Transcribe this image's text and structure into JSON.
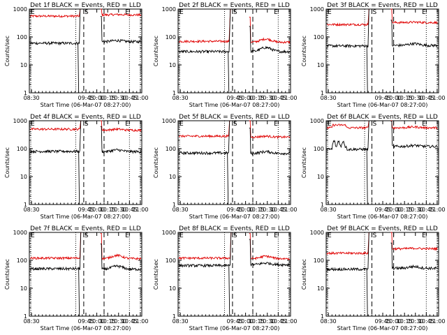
{
  "chart_data": {
    "type": "line",
    "ylabel": "Counts/sec",
    "xlabel": "Start Time (06-Mar-07 08:27:00)",
    "y_scale": "log",
    "ylim": [
      1,
      1000
    ],
    "ytick_labels": [
      "1",
      "10",
      "100",
      "1000"
    ],
    "xlim_minutes_since_0830": [
      -3,
      152
    ],
    "xtick_labels": [
      "08:30",
      "09:45",
      "10:00",
      "10:15",
      "10:30",
      "10:45",
      "11:00"
    ],
    "marker_labels": {
      "start": "S",
      "end": "E",
      "edge": "E"
    },
    "series_colors": {
      "events": "#000000",
      "lld": "#e00000"
    },
    "panels": [
      {
        "title": "Det 1f BLACK = Events, RED = LLD",
        "xticks": [
          "08:30",
          "09:45",
          "10:00",
          "10:15",
          "10:30",
          "10:45",
          "11:00"
        ],
        "gap": [
          66,
          95
        ],
        "dashed": [
          61,
          72,
          100
        ],
        "events": {
          "pre": 60,
          "post": 68,
          "bump": 75
        },
        "lld": {
          "pre": 560,
          "post": 620,
          "bump": 640
        },
        "pre_spike": false
      },
      {
        "title": "Det 2f BLACK = Events, RED = LLD",
        "xticks": [
          "08:30",
          "09:45",
          "10:00",
          "10:15",
          "10:30",
          "10:45",
          "11:00"
        ],
        "gap": [
          68,
          95
        ],
        "dashed": [
          61,
          72,
          100
        ],
        "events": {
          "pre": 30,
          "post": 30,
          "bump": 42
        },
        "lld": {
          "pre": 70,
          "post": 65,
          "bump": 85
        },
        "pre_spike": false
      },
      {
        "title": "Det 3f BLACK = Events, RED = LLD",
        "xticks": [
          "08:30",
          "09:45",
          "10:00",
          "10:15",
          "10:30",
          "10:45",
          "11:00"
        ],
        "gap": [
          55,
          86
        ],
        "dashed": [
          50,
          60,
          90
        ],
        "events": {
          "pre": 48,
          "post": 50,
          "bump": 58
        },
        "lld": {
          "pre": 280,
          "post": 330,
          "bump": 340
        },
        "pre_spike": false
      },
      {
        "title": "Det 4f BLACK = Events, RED = LLD",
        "xticks": [
          "08:30",
          "09:45",
          "10:00",
          "10:15",
          "10:30",
          "10:45",
          "11:00"
        ],
        "gap": [
          67,
          95
        ],
        "dashed": [
          61,
          72,
          100
        ],
        "events": {
          "pre": 80,
          "post": 78,
          "bump": 90
        },
        "lld": {
          "pre": 500,
          "post": 460,
          "bump": 500
        },
        "pre_spike": false
      },
      {
        "title": "Det 5f BLACK = Events, RED = LLD",
        "xticks": [
          "08:30",
          "09:45",
          "10:00",
          "10:15",
          "10:30",
          "10:45",
          "11:00"
        ],
        "gap": [
          67,
          95
        ],
        "dashed": [
          61,
          72,
          100
        ],
        "events": {
          "pre": 70,
          "post": 68,
          "bump": 78
        },
        "lld": {
          "pre": 280,
          "post": 260,
          "bump": 280
        },
        "pre_spike": false
      },
      {
        "title": "Det 6f BLACK = Events, RED = LLD",
        "xticks": [
          "08:30",
          "09:45",
          "10:00",
          "10:15",
          "10:30",
          "10:45",
          "11:00"
        ],
        "gap": [
          55,
          86
        ],
        "dashed": [
          50,
          60,
          90
        ],
        "events": {
          "pre": 95,
          "post": 120,
          "bump": 130
        },
        "lld": {
          "pre": 560,
          "post": 560,
          "bump": 600
        },
        "pre_spike": true
      },
      {
        "title": "Det 7f BLACK = Events, RED = LLD",
        "xticks": [
          "08:30",
          "09:45",
          "10:00",
          "10:15",
          "10:30",
          "10:45",
          "11:00"
        ],
        "gap": [
          67,
          95
        ],
        "dashed": [
          61,
          72,
          100
        ],
        "events": {
          "pre": 50,
          "post": 48,
          "bump": 62
        },
        "lld": {
          "pre": 120,
          "post": 115,
          "bump": 150
        },
        "pre_spike": false
      },
      {
        "title": "Det 8f BLACK = Events, RED = LLD",
        "xticks": [
          "08:30",
          "09:45",
          "10:00",
          "10:15",
          "10:30",
          "10:45",
          "11:00"
        ],
        "gap": [
          69,
          95
        ],
        "dashed": [
          61,
          72,
          100
        ],
        "events": {
          "pre": 65,
          "post": 70,
          "bump": 80
        },
        "lld": {
          "pre": 120,
          "post": 115,
          "bump": 140
        },
        "pre_spike": false
      },
      {
        "title": "Det 9f BLACK = Events, RED = LLD",
        "xticks": [
          "08:30",
          "09:45",
          "10:00",
          "10:15",
          "10:30",
          "10:45",
          "11:00"
        ],
        "gap": [
          55,
          86
        ],
        "dashed": [
          50,
          60,
          90
        ],
        "events": {
          "pre": 48,
          "post": 52,
          "bump": 60
        },
        "lld": {
          "pre": 180,
          "post": 260,
          "bump": 270
        },
        "pre_spike": false
      }
    ]
  }
}
